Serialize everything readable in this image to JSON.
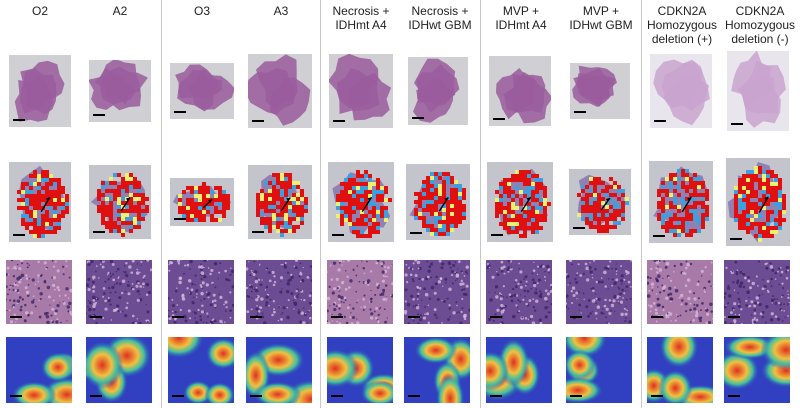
{
  "figure": {
    "columns": [
      {
        "label": "O2"
      },
      {
        "label": "A2"
      },
      {
        "label": "O3"
      },
      {
        "label": "A3"
      },
      {
        "label": "Necrosis +\nIDHmt A4"
      },
      {
        "label": "Necrosis +\nIDHwt GBM"
      },
      {
        "label": "MVP +\nIDHmt A4"
      },
      {
        "label": "MVP +\nIDHwt GBM"
      },
      {
        "label": "CDKN2A\nHomozygous\ndeletion (+)"
      },
      {
        "label": "CDKN2A\nHomozygous\ndeletion (-)"
      }
    ],
    "rows": [
      "whole-slide-image",
      "prediction-map",
      "tissue-patch",
      "attention-heatmap"
    ],
    "colors": {
      "tissue": "#9a5c9c",
      "tissue_light": "#c9a3cf",
      "slide_bg": "#cfcfd4",
      "map_red": "#e01010",
      "map_blue": "#3aa0e0",
      "map_yellow": "#f0f070",
      "heat_blue": "#3040c0",
      "heat_red": "#e03020"
    }
  }
}
